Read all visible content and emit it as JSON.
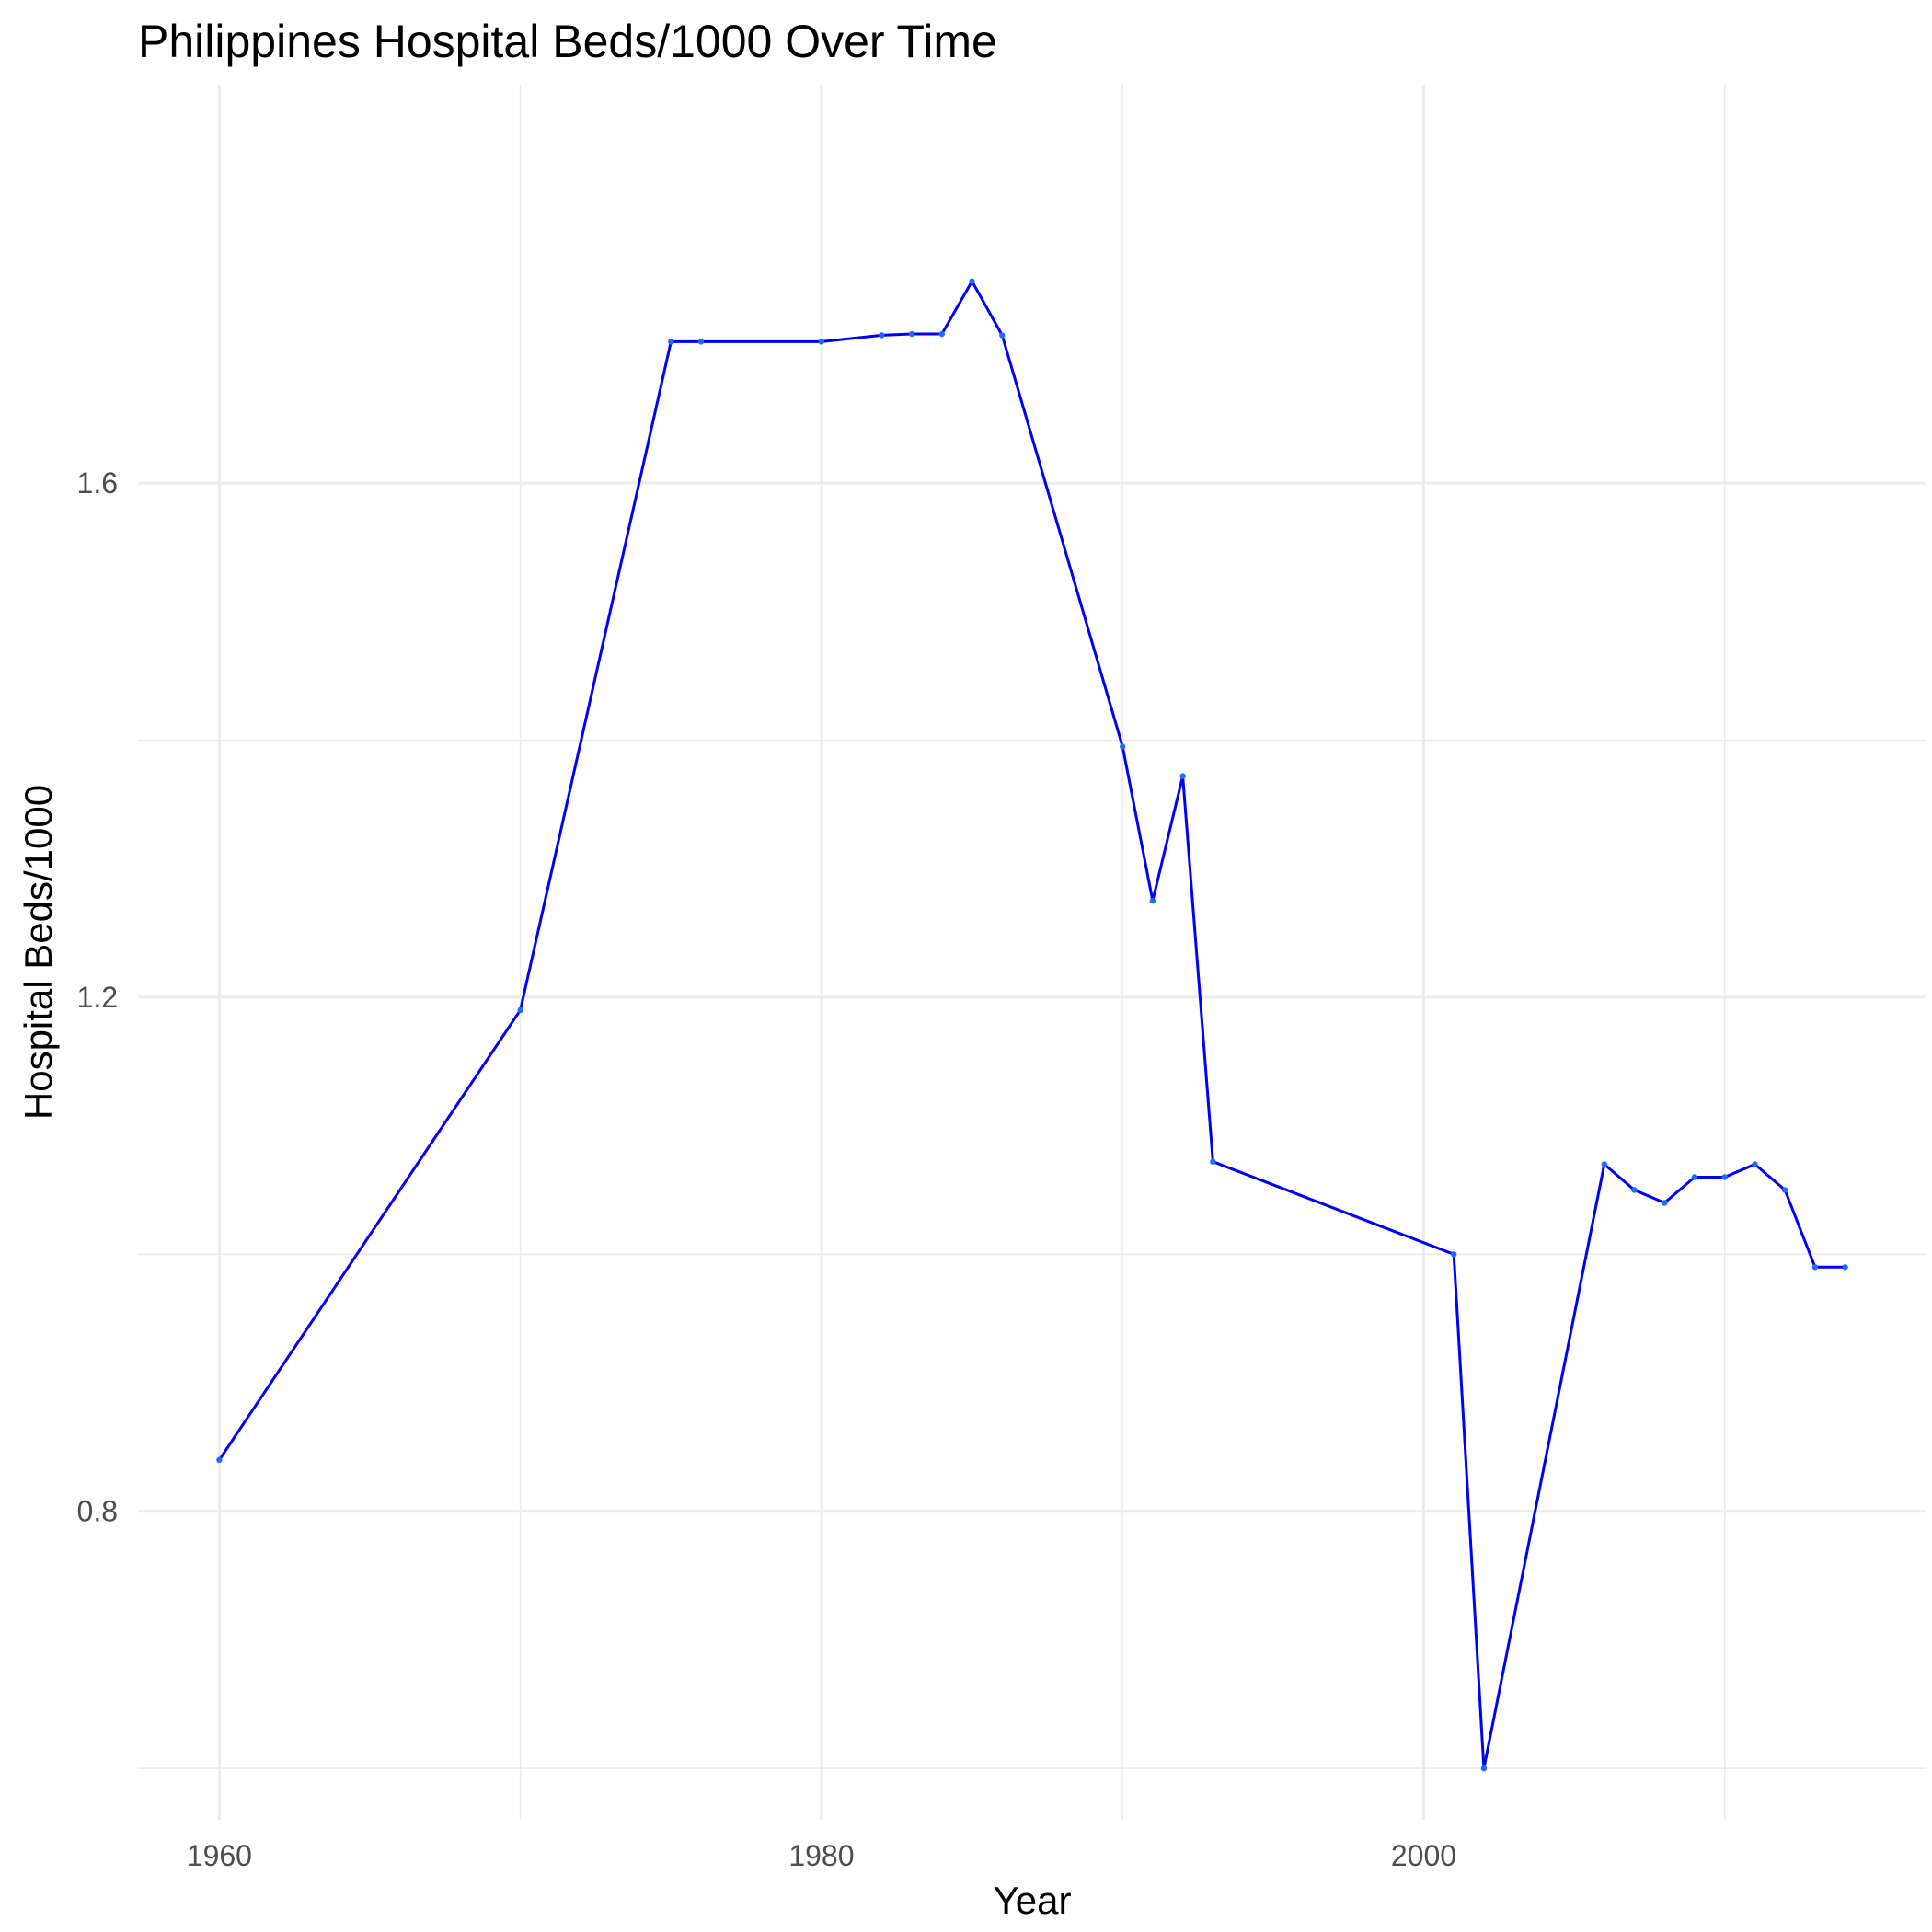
{
  "chart_data": {
    "type": "line",
    "title": "Philippines Hospital Beds/1000 Over Time",
    "xlabel": "Year",
    "ylabel": "Hospital Beds/1000",
    "xlim": [
      1957.3,
      2016.7
    ],
    "ylim": [
      0.56,
      1.91
    ],
    "x_ticks": [
      1960,
      1980,
      2000
    ],
    "x_minor_ticks": [
      1970,
      1990,
      2010
    ],
    "y_ticks": [
      0.8,
      1.2,
      1.6
    ],
    "y_minor_ticks": [
      1.0,
      1.4,
      0.6
    ],
    "x_tick_labels": [
      "1960",
      "1980",
      "2000"
    ],
    "y_tick_labels": [
      "0.8",
      "1.2",
      "1.6"
    ],
    "grid": true,
    "legend": "none",
    "series": [
      {
        "color": "#0000ff",
        "x": [
          1960,
          1970,
          1975,
          1976,
          1980,
          1982,
          1983,
          1984,
          1985,
          1986,
          1990,
          1991,
          1992,
          1993,
          2001,
          2002,
          2006,
          2007,
          2008,
          2009,
          2010,
          2011,
          2012,
          2013,
          2014
        ],
        "y": [
          0.84,
          1.19,
          1.71,
          1.71,
          1.71,
          1.715,
          1.716,
          1.716,
          1.757,
          1.715,
          1.395,
          1.275,
          1.372,
          1.072,
          1.0,
          0.6,
          1.07,
          1.05,
          1.04,
          1.06,
          1.06,
          1.07,
          1.05,
          0.99,
          0.99
        ]
      }
    ]
  }
}
